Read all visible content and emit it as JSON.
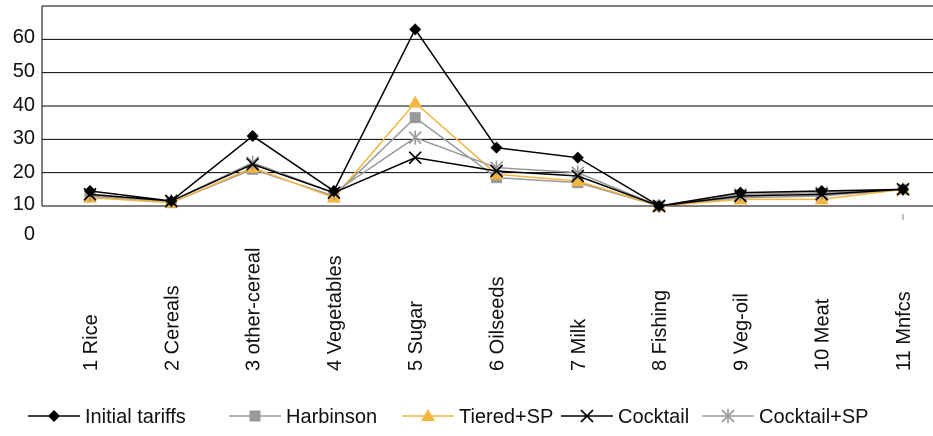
{
  "chart_data": {
    "type": "line",
    "title": "",
    "xlabel": "",
    "ylabel": "",
    "categories": [
      "1 Rice",
      "2 Cereals",
      "3 other-cereal",
      "4 Vegetables",
      "5 Sugar",
      "6 Oilseeds",
      "7 Milk",
      "8 Fishing",
      "9 Veg-oil",
      "10 Meat",
      "11 Mnfcs"
    ],
    "y_ticks": [
      "0",
      "10",
      "20",
      "30",
      "40",
      "50",
      "60"
    ],
    "ylim": [
      10,
      70
    ],
    "grid": true,
    "legend_position": "bottom",
    "series": [
      {
        "name": "Initial tariffs",
        "color": "#000000",
        "marker": "diamond",
        "values": [
          14.5,
          11.5,
          31,
          14.5,
          63,
          27.5,
          24.5,
          10,
          14,
          14.5,
          15
        ]
      },
      {
        "name": "Harbinson",
        "color": "#999999",
        "marker": "square",
        "values": [
          13,
          11,
          21,
          13,
          36.5,
          18.5,
          17,
          10,
          12.5,
          13,
          15
        ]
      },
      {
        "name": "Tiered+SP",
        "color": "#f2b640",
        "marker": "triangle",
        "values": [
          12.5,
          11,
          21.5,
          12.5,
          41,
          19.5,
          17.5,
          10,
          12,
          12,
          15
        ]
      },
      {
        "name": "Cocktail",
        "color": "#000000",
        "marker": "x",
        "values": [
          13.5,
          11.5,
          22.5,
          14,
          24.5,
          20.5,
          19,
          10,
          13,
          13.5,
          15
        ]
      },
      {
        "name": "Cocktail+SP",
        "color": "#999999",
        "marker": "star",
        "values": [
          13.5,
          11.5,
          23,
          14,
          30.5,
          21.5,
          20,
          10,
          13.5,
          14,
          15
        ]
      }
    ]
  }
}
